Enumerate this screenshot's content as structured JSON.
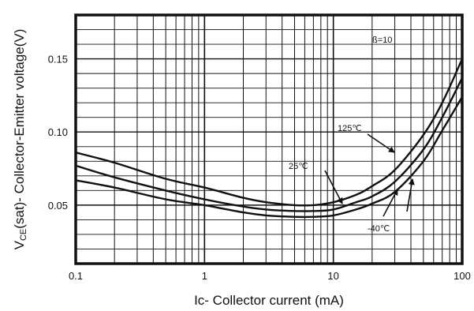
{
  "chart_data": {
    "type": "line",
    "x_scale": "log",
    "xlim": [
      0.1,
      100
    ],
    "ylim": [
      0.01,
      0.18
    ],
    "xlabel": "Ic- Collector current (mA)",
    "ylabel": "V(sat)- Collector-Emitter voltage(V)",
    "ylabel_main": "V",
    "ylabel_sub": "CE",
    "ylabel_rest": "(sat)- Collector-Emitter voltage(V)",
    "grid": true,
    "x_ticks": [
      {
        "value": 0.1,
        "label": "0.1"
      },
      {
        "value": 1,
        "label": "1"
      },
      {
        "value": 10,
        "label": "10"
      },
      {
        "value": 100,
        "label": "100"
      }
    ],
    "y_ticks": [
      {
        "value": 0.05,
        "label": "0.05"
      },
      {
        "value": 0.1,
        "label": "0.10"
      },
      {
        "value": 0.15,
        "label": "0.15"
      }
    ],
    "annotations": {
      "beta": "ß=10"
    },
    "series": [
      {
        "name": "125℃",
        "x": [
          0.1,
          0.2,
          0.5,
          1,
          2,
          3,
          5,
          7,
          10,
          15,
          20,
          30,
          50,
          70,
          100
        ],
        "y": [
          0.086,
          0.079,
          0.068,
          0.062,
          0.055,
          0.052,
          0.05,
          0.05,
          0.052,
          0.057,
          0.063,
          0.074,
          0.098,
          0.12,
          0.15
        ]
      },
      {
        "name": "25℃",
        "x": [
          0.1,
          0.2,
          0.5,
          1,
          2,
          3,
          5,
          7,
          10,
          15,
          20,
          30,
          50,
          70,
          100
        ],
        "y": [
          0.077,
          0.069,
          0.06,
          0.054,
          0.049,
          0.047,
          0.046,
          0.046,
          0.047,
          0.052,
          0.056,
          0.066,
          0.088,
          0.11,
          0.137
        ]
      },
      {
        "name": "-40℃",
        "x": [
          0.1,
          0.2,
          0.5,
          1,
          2,
          3,
          5,
          7,
          10,
          15,
          20,
          30,
          50,
          70,
          100
        ],
        "y": [
          0.067,
          0.062,
          0.054,
          0.05,
          0.045,
          0.043,
          0.042,
          0.042,
          0.043,
          0.047,
          0.051,
          0.059,
          0.08,
          0.101,
          0.124
        ]
      }
    ]
  }
}
